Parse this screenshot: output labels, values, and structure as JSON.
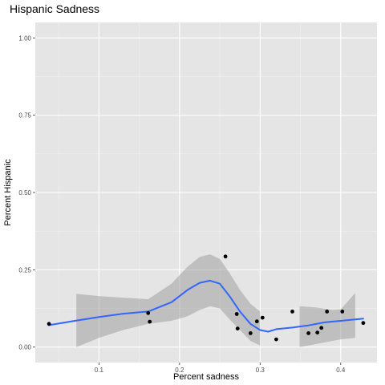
{
  "chart_data": {
    "type": "scatter",
    "title": "Hispanic Sadness",
    "xlabel": "Percent sadness",
    "ylabel": "Percent Hispanic",
    "xlim": [
      0.021,
      0.445
    ],
    "ylim": [
      -0.05,
      1.05
    ],
    "x_ticks": [
      0.1,
      0.2,
      0.3,
      0.4
    ],
    "x_tick_labels": [
      "0.1",
      "0.2",
      "0.3",
      "0.4"
    ],
    "y_ticks": [
      0.0,
      0.25,
      0.5,
      0.75,
      1.0
    ],
    "y_tick_labels": [
      "0.00",
      "0.25",
      "0.50",
      "0.75",
      "1.00"
    ],
    "grid": true,
    "points": [
      {
        "x": 0.038,
        "y": 0.075
      },
      {
        "x": 0.161,
        "y": 0.11
      },
      {
        "x": 0.163,
        "y": 0.082
      },
      {
        "x": 0.257,
        "y": 0.293
      },
      {
        "x": 0.271,
        "y": 0.107
      },
      {
        "x": 0.272,
        "y": 0.06
      },
      {
        "x": 0.288,
        "y": 0.045
      },
      {
        "x": 0.296,
        "y": 0.083
      },
      {
        "x": 0.303,
        "y": 0.095
      },
      {
        "x": 0.32,
        "y": 0.025
      },
      {
        "x": 0.34,
        "y": 0.115
      },
      {
        "x": 0.36,
        "y": 0.045
      },
      {
        "x": 0.371,
        "y": 0.047
      },
      {
        "x": 0.376,
        "y": 0.062
      },
      {
        "x": 0.383,
        "y": 0.115
      },
      {
        "x": 0.402,
        "y": 0.115
      },
      {
        "x": 0.428,
        "y": 0.078
      }
    ],
    "smooth_segments": [
      {
        "fit": [
          [
            0.038,
            0.071
          ],
          [
            0.07,
            0.085
          ],
          [
            0.1,
            0.097
          ],
          [
            0.13,
            0.108
          ],
          [
            0.161,
            0.115
          ],
          [
            0.19,
            0.145
          ],
          [
            0.21,
            0.185
          ],
          [
            0.225,
            0.208
          ],
          [
            0.238,
            0.215
          ],
          [
            0.25,
            0.205
          ],
          [
            0.262,
            0.165
          ],
          [
            0.275,
            0.115
          ],
          [
            0.288,
            0.075
          ],
          [
            0.3,
            0.055
          ],
          [
            0.31,
            0.05
          ],
          [
            0.32,
            0.058
          ]
        ],
        "upper": [
          [
            0.072,
            0.172
          ],
          [
            0.1,
            0.165
          ],
          [
            0.13,
            0.16
          ],
          [
            0.161,
            0.155
          ],
          [
            0.19,
            0.205
          ],
          [
            0.21,
            0.26
          ],
          [
            0.225,
            0.292
          ],
          [
            0.238,
            0.3
          ],
          [
            0.25,
            0.285
          ],
          [
            0.262,
            0.24
          ],
          [
            0.275,
            0.185
          ],
          [
            0.288,
            0.14
          ],
          [
            0.3,
            0.115
          ]
        ],
        "lower": [
          [
            0.3,
            0.005
          ],
          [
            0.288,
            0.02
          ],
          [
            0.275,
            0.055
          ],
          [
            0.262,
            0.09
          ],
          [
            0.25,
            0.125
          ],
          [
            0.238,
            0.132
          ],
          [
            0.225,
            0.12
          ],
          [
            0.21,
            0.1
          ],
          [
            0.19,
            0.085
          ],
          [
            0.161,
            0.075
          ],
          [
            0.13,
            0.055
          ],
          [
            0.1,
            0.03
          ],
          [
            0.072,
            0.0
          ]
        ]
      },
      {
        "fit": [
          [
            0.32,
            0.058
          ],
          [
            0.34,
            0.063
          ],
          [
            0.36,
            0.07
          ],
          [
            0.38,
            0.08
          ],
          [
            0.4,
            0.085
          ],
          [
            0.428,
            0.092
          ]
        ],
        "upper": [
          [
            0.349,
            0.132
          ],
          [
            0.37,
            0.128
          ],
          [
            0.39,
            0.12
          ],
          [
            0.4,
            0.122
          ],
          [
            0.418,
            0.175
          ]
        ],
        "lower": [
          [
            0.418,
            0.03
          ],
          [
            0.4,
            0.025
          ],
          [
            0.39,
            0.02
          ],
          [
            0.37,
            0.01
          ],
          [
            0.349,
            0.0
          ]
        ]
      }
    ],
    "colors": {
      "panel_bg": "#e5e5e5",
      "grid_major": "#ffffff",
      "grid_minor": "#f2f2f2",
      "point": "#000000",
      "smooth_line": "#3366ff",
      "ribbon": "#999999"
    }
  }
}
